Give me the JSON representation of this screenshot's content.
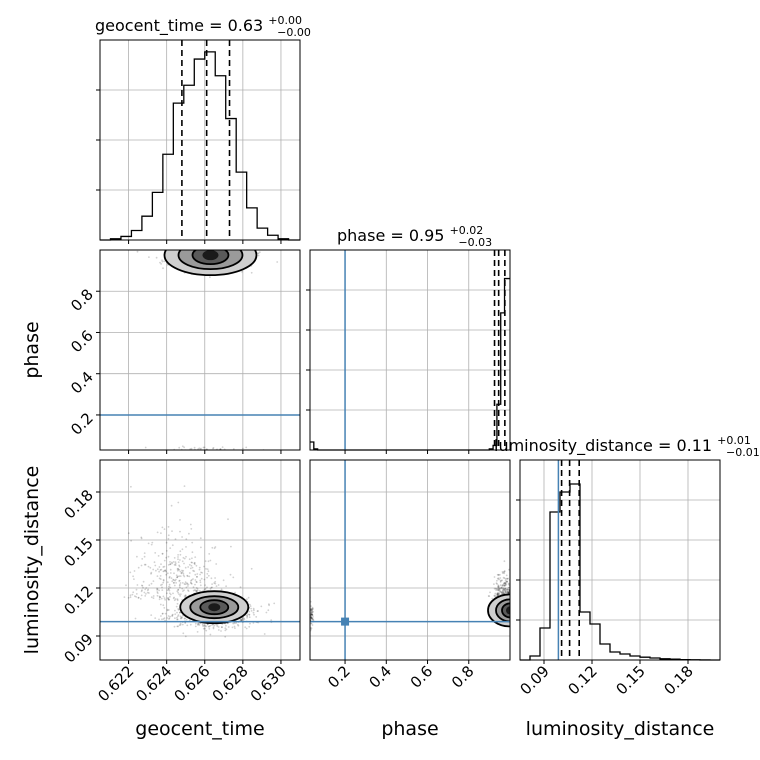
{
  "chart_data": {
    "type": "corner",
    "parameters": [
      "geocent_time",
      "phase",
      "luminosity_distance"
    ],
    "axis_labels": {
      "geocent_time": "geocent_time",
      "phase": "phase",
      "luminosity_distance": "luminosity_distance"
    },
    "titles": [
      {
        "param": "geocent_time",
        "name": "geocent_time",
        "median": "0.63",
        "plus": "+0.00",
        "minus": "−0.00"
      },
      {
        "param": "phase",
        "name": "phase",
        "median": "0.95",
        "plus": "+0.02",
        "minus": "−0.03"
      },
      {
        "param": "luminosity_distance",
        "name": "luminosity_distance",
        "median": "0.11",
        "plus": "+0.01",
        "minus": "−0.01"
      }
    ],
    "ranges": {
      "geocent_time": [
        0.6205,
        0.631
      ],
      "phase": [
        0.03,
        1.0
      ],
      "luminosity_distance": [
        0.075,
        0.2
      ]
    },
    "ticks": {
      "geocent_time": {
        "values": [
          0.622,
          0.624,
          0.626,
          0.628,
          0.63
        ],
        "labels": [
          "0.622",
          "0.624",
          "0.626",
          "0.628",
          "0.630"
        ]
      },
      "phase": {
        "values": [
          0.2,
          0.4,
          0.6,
          0.8
        ],
        "labels": [
          "0.2",
          "0.4",
          "0.6",
          "0.8"
        ]
      },
      "luminosity_distance": {
        "values": [
          0.09,
          0.12,
          0.15,
          0.18
        ],
        "labels": [
          "0.09",
          "0.12",
          "0.15",
          "0.18"
        ]
      }
    },
    "quantiles": {
      "geocent_time": [
        0.6248,
        0.6261,
        0.6273
      ],
      "phase": [
        0.925,
        0.945,
        0.975
      ],
      "luminosity_distance": [
        0.101,
        0.106,
        0.112
      ]
    },
    "truths": {
      "geocent_time": null,
      "phase": 0.2,
      "luminosity_distance": 0.099
    },
    "histograms": {
      "geocent_time": {
        "edges": [
          0.6205,
          0.62105,
          0.6216,
          0.62215,
          0.6227,
          0.62325,
          0.6238,
          0.62435,
          0.6249,
          0.62545,
          0.626,
          0.62655,
          0.6271,
          0.62765,
          0.6282,
          0.62875,
          0.6293,
          0.62985,
          0.6304,
          0.631
        ],
        "counts": [
          0,
          1,
          3,
          8,
          20,
          40,
          72,
          115,
          130,
          152,
          158,
          138,
          102,
          57,
          27,
          10,
          4,
          1,
          0
        ],
        "ymax": 168
      },
      "phase": {
        "edges": [
          0.03,
          0.0485,
          0.067,
          0.0855,
          0.104,
          0.1225,
          0.141,
          0.1595,
          0.178,
          0.1965,
          0.215,
          0.2335,
          0.252,
          0.2705,
          0.289,
          0.3075,
          0.326,
          0.3445,
          0.363,
          0.3815,
          0.4,
          0.4185,
          0.437,
          0.4555,
          0.474,
          0.4925,
          0.511,
          0.5295,
          0.548,
          0.5665,
          0.585,
          0.6035,
          0.622,
          0.6405,
          0.659,
          0.6775,
          0.696,
          0.7145,
          0.733,
          0.7515,
          0.77,
          0.7885,
          0.807,
          0.8255,
          0.844,
          0.8625,
          0.881,
          0.8995,
          0.918,
          0.9365,
          0.955,
          0.9735,
          1.0
        ],
        "counts": [
          7,
          1,
          0,
          0,
          0,
          0,
          0,
          0,
          0,
          0,
          0,
          0,
          0,
          0,
          0,
          0,
          0,
          0,
          0,
          0,
          0,
          0,
          0,
          0,
          0,
          0,
          0,
          0,
          0,
          0,
          0,
          0,
          0,
          0,
          0,
          0,
          0,
          0,
          0,
          0,
          0,
          0,
          0,
          0,
          0,
          0,
          0,
          1,
          4,
          40,
          120,
          150
        ],
        "ymax": 175
      },
      "luminosity_distance": {
        "edges": [
          0.075,
          0.08125,
          0.0875,
          0.09375,
          0.1,
          0.10625,
          0.1125,
          0.11875,
          0.125,
          0.13125,
          0.1375,
          0.14375,
          0.15,
          0.15625,
          0.1625,
          0.16875,
          0.175,
          0.18125,
          0.1875,
          0.19375,
          0.2
        ],
        "counts": [
          0,
          1,
          8,
          37,
          42,
          44,
          12,
          9,
          4,
          2,
          1.5,
          1,
          0.7,
          0.5,
          0.3,
          0.2,
          0.1,
          0.05,
          0.02,
          0
        ],
        "ymax": 50
      }
    },
    "grid": true
  }
}
